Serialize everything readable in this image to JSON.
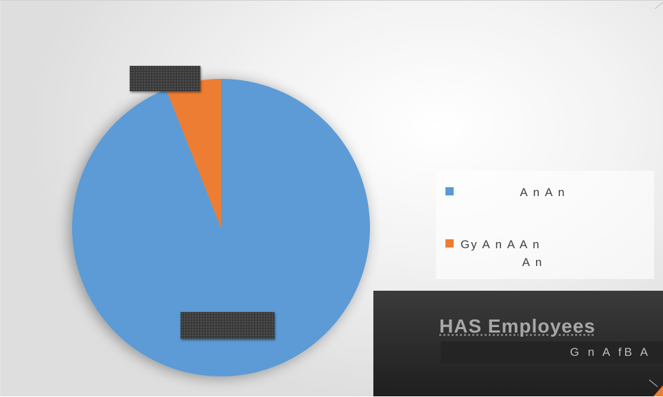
{
  "chart_data": {
    "type": "pie",
    "series": [
      {
        "values": [
          94,
          6
        ]
      }
    ],
    "categories": [
      "A n      A n",
      "Gy   A   n A   A  n A n"
    ],
    "colors": [
      "#5b9bd5",
      "#ed7d31"
    ],
    "start_angle_deg": 0,
    "direction": "clockwise",
    "legend_position": "right"
  },
  "legend": {
    "items": [
      {
        "label": "A    n          A n",
        "color": "#5b9bd5"
      },
      {
        "label": "Gy    A    n A    A   n",
        "label_line2": "A n",
        "color": "#ed7d31"
      }
    ]
  },
  "overlay": {
    "title": "HAS Employees",
    "bar_text": "G n     A   fB A"
  }
}
